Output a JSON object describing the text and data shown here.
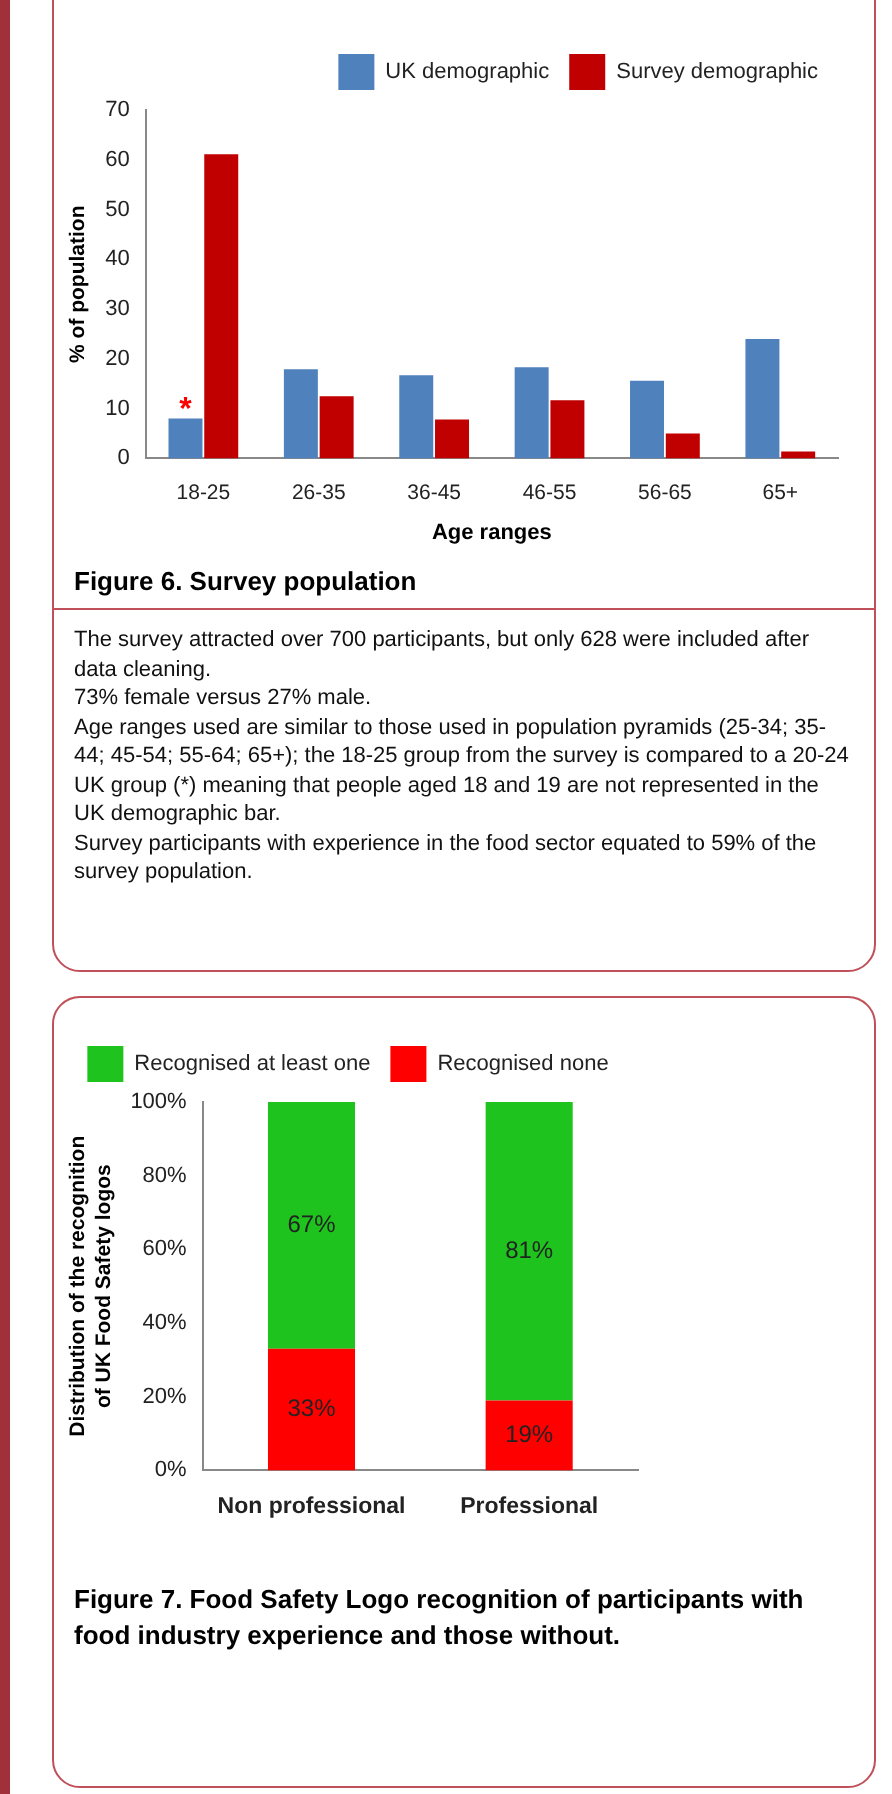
{
  "chart_data": [
    {
      "type": "bar",
      "title": "Figure 6. Survey population",
      "xlabel": "Age ranges",
      "ylabel": "% of population",
      "categories": [
        "18-25",
        "26-35",
        "36-45",
        "46-55",
        "56-65",
        "65+"
      ],
      "series": [
        {
          "name": "UK demographic",
          "color": "#4f81bd",
          "values": [
            8.0,
            17.9,
            16.7,
            18.3,
            15.6,
            24.0
          ]
        },
        {
          "name": "Survey demographic",
          "color": "#c00000",
          "values": [
            61.1,
            12.5,
            7.8,
            11.7,
            5.0,
            1.4
          ]
        }
      ],
      "ylim": [
        0,
        70
      ],
      "yticks": [
        0,
        10,
        20,
        30,
        40,
        50,
        60,
        70
      ],
      "grid": false,
      "legend": "top right",
      "annotations": [
        {
          "text": "*",
          "x": "18-25",
          "y": 8.0
        },
        "The survey attracted over 700 participants, but only 628 were included after data cleaning.",
        "73% female versus 27% male.",
        "Age ranges used are similar to those used in population pyramids (25-34; 35-44; 45-54; 55-64; 65+); the 18-25 group from the survey is compared to a 20-24 UK group (*) meaning that people aged 18 and 19 are not represented in the  UK demographic bar.",
        "Survey participants with experience in the food sector equated to 59% of the survey population."
      ]
    },
    {
      "type": "bar",
      "title": "Figure  7. Food Safety Logo recognition of participants with food industry experience and those without.",
      "ylabel": "Distribution of the recognition of UK Food Safety logos",
      "categories": [
        "Non professional",
        "Professional"
      ],
      "stacked": true,
      "series": [
        {
          "name": "Recognised none",
          "color": "#ff0000",
          "values": [
            33,
            19
          ],
          "value_labels": [
            "33%",
            "19%"
          ]
        },
        {
          "name": "Recognised at least one",
          "color": "#1ec31e",
          "values": [
            67,
            81
          ],
          "value_labels": [
            "67%",
            "81%"
          ]
        }
      ],
      "ylim": [
        0,
        100
      ],
      "yticks": [
        {
          "value": 0,
          "label": "0%"
        },
        {
          "value": 20,
          "label": "20%"
        },
        {
          "value": 40,
          "label": "40%"
        },
        {
          "value": 60,
          "label": "60%"
        },
        {
          "value": 80,
          "label": "80%"
        },
        {
          "value": 100,
          "label": "100%"
        }
      ],
      "grid": false,
      "legend": "top"
    }
  ]
}
